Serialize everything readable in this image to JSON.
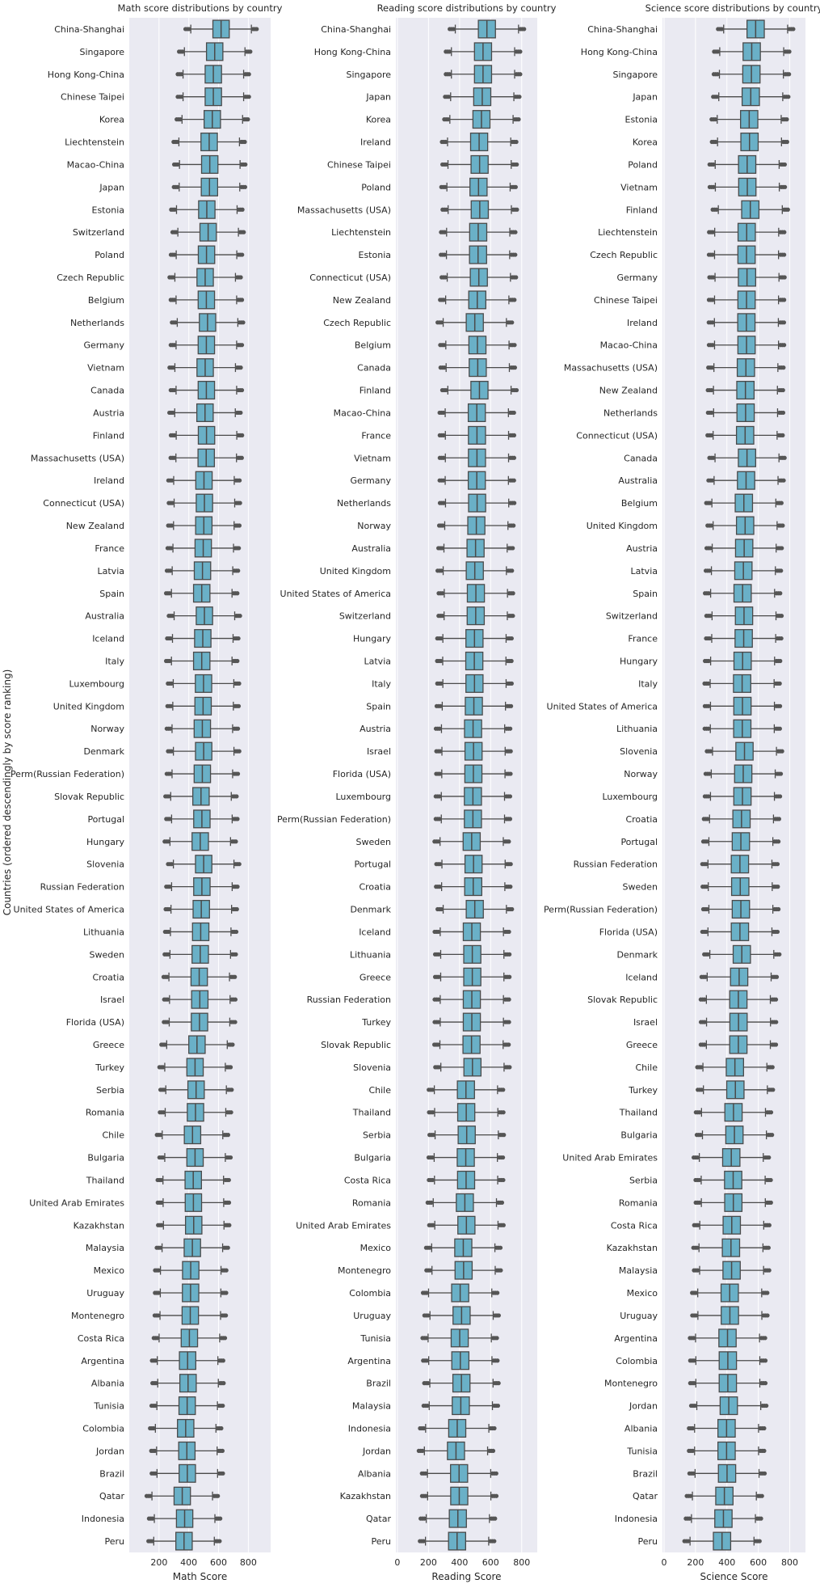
{
  "figure": {
    "ylabel": "Countries (ordered descendingly by score ranking)",
    "colors": {
      "background": "#EAEAF2",
      "grid": "#FFFFFF",
      "box_fill": "#6AB0C7",
      "box_edge": "#4A4A4A",
      "outlier": "#555555",
      "text": "#262626"
    }
  },
  "chart_data": [
    {
      "type": "box",
      "title": "Math score distributions by country",
      "xlabel": "Math Score",
      "xlim": [
        0,
        950
      ],
      "xticks": [
        200,
        400,
        600,
        800
      ],
      "categories": [
        "China-Shanghai",
        "Singapore",
        "Hong Kong-China",
        "Chinese Taipei",
        "Korea",
        "Liechtenstein",
        "Macao-China",
        "Japan",
        "Estonia",
        "Switzerland",
        "Poland",
        "Czech Republic",
        "Belgium",
        "Netherlands",
        "Germany",
        "Vietnam",
        "Canada",
        "Austria",
        "Finland",
        "Massachusetts (USA)",
        "Ireland",
        "Connecticut (USA)",
        "New Zealand",
        "France",
        "Latvia",
        "Spain",
        "Australia",
        "Iceland",
        "Italy",
        "Luxembourg",
        "United Kingdom",
        "Norway",
        "Denmark",
        "Perm(Russian Federation)",
        "Slovak Republic",
        "Portugal",
        "Hungary",
        "Slovenia",
        "Russian Federation",
        "United States of America",
        "Lithuania",
        "Sweden",
        "Croatia",
        "Israel",
        "Florida (USA)",
        "Greece",
        "Turkey",
        "Serbia",
        "Romania",
        "Chile",
        "Bulgaria",
        "Thailand",
        "United Arab Emirates",
        "Kazakhstan",
        "Malaysia",
        "Mexico",
        "Uruguay",
        "Montenegro",
        "Costa Rica",
        "Argentina",
        "Albania",
        "Tunisia",
        "Colombia",
        "Jordan",
        "Brazil",
        "Qatar",
        "Indonesia",
        "Peru"
      ],
      "medians": [
        617,
        574,
        565,
        565,
        558,
        537,
        541,
        539,
        521,
        530,
        519,
        510,
        518,
        526,
        518,
        510,
        518,
        509,
        519,
        517,
        502,
        505,
        501,
        497,
        492,
        487,
        505,
        494,
        487,
        499,
        496,
        491,
        500,
        491,
        482,
        488,
        477,
        500,
        488,
        484,
        480,
        477,
        470,
        474,
        472,
        455,
        442,
        449,
        445,
        425,
        442,
        430,
        431,
        433,
        424,
        413,
        412,
        410,
        404,
        392,
        395,
        389,
        379,
        387,
        390,
        356,
        372,
        368
      ]
    },
    {
      "type": "box",
      "title": "Reading score distributions by country",
      "xlabel": "Reading Score",
      "xlim": [
        -10,
        900
      ],
      "xticks": [
        0,
        200,
        400,
        600,
        800
      ],
      "categories": [
        "China-Shanghai",
        "Hong Kong-China",
        "Singapore",
        "Japan",
        "Korea",
        "Ireland",
        "Chinese Taipei",
        "Poland",
        "Massachusetts (USA)",
        "Liechtenstein",
        "Estonia",
        "Connecticut (USA)",
        "New Zealand",
        "Czech Republic",
        "Belgium",
        "Canada",
        "Finland",
        "Macao-China",
        "France",
        "Vietnam",
        "Germany",
        "Netherlands",
        "Norway",
        "Australia",
        "United Kingdom",
        "United States of America",
        "Switzerland",
        "Hungary",
        "Latvia",
        "Italy",
        "Spain",
        "Austria",
        "Israel",
        "Florida (USA)",
        "Luxembourg",
        "Perm(Russian Federation)",
        "Sweden",
        "Portugal",
        "Croatia",
        "Denmark",
        "Iceland",
        "Lithuania",
        "Greece",
        "Russian Federation",
        "Turkey",
        "Slovak Republic",
        "Slovenia",
        "Chile",
        "Thailand",
        "Serbia",
        "Bulgaria",
        "Costa Rica",
        "Romania",
        "United Arab Emirates",
        "Mexico",
        "Montenegro",
        "Colombia",
        "Uruguay",
        "Tunisia",
        "Argentina",
        "Brazil",
        "Malaysia",
        "Indonesia",
        "Jordan",
        "Albania",
        "Kazakhstan",
        "Qatar",
        "Peru"
      ],
      "medians": [
        576,
        551,
        551,
        546,
        541,
        526,
        529,
        522,
        530,
        520,
        519,
        524,
        514,
        498,
        515,
        517,
        528,
        511,
        512,
        512,
        511,
        513,
        508,
        503,
        498,
        505,
        504,
        496,
        495,
        496,
        492,
        487,
        490,
        489,
        486,
        486,
        478,
        490,
        488,
        498,
        479,
        482,
        482,
        479,
        479,
        477,
        483,
        441,
        443,
        446,
        440,
        442,
        434,
        444,
        424,
        426,
        404,
        413,
        401,
        405,
        412,
        408,
        385,
        377,
        397,
        398,
        389,
        384
      ]
    },
    {
      "type": "box",
      "title": "Science score distributions by country",
      "xlabel": "Science Score",
      "xlim": [
        -10,
        900
      ],
      "xticks": [
        0,
        200,
        400,
        600,
        800
      ],
      "categories": [
        "China-Shanghai",
        "Hong Kong-China",
        "Singapore",
        "Japan",
        "Estonia",
        "Korea",
        "Poland",
        "Vietnam",
        "Finland",
        "Liechtenstein",
        "Czech Republic",
        "Germany",
        "Chinese Taipei",
        "Ireland",
        "Macao-China",
        "Massachusetts (USA)",
        "New Zealand",
        "Netherlands",
        "Connecticut (USA)",
        "Canada",
        "Australia",
        "Belgium",
        "United Kingdom",
        "Austria",
        "Latvia",
        "Spain",
        "Switzerland",
        "France",
        "Hungary",
        "Italy",
        "United States of America",
        "Lithuania",
        "Slovenia",
        "Norway",
        "Luxembourg",
        "Croatia",
        "Portugal",
        "Russian Federation",
        "Sweden",
        "Perm(Russian Federation)",
        "Florida (USA)",
        "Denmark",
        "Iceland",
        "Slovak Republic",
        "Israel",
        "Greece",
        "Chile",
        "Turkey",
        "Thailand",
        "Bulgaria",
        "United Arab Emirates",
        "Serbia",
        "Romania",
        "Costa Rica",
        "Kazakhstan",
        "Malaysia",
        "Mexico",
        "Uruguay",
        "Argentina",
        "Colombia",
        "Montenegro",
        "Jordan",
        "Albania",
        "Tunisia",
        "Brazil",
        "Qatar",
        "Indonesia",
        "Peru"
      ],
      "medians": [
        583,
        558,
        556,
        552,
        542,
        544,
        529,
        530,
        549,
        526,
        525,
        528,
        525,
        524,
        525,
        521,
        518,
        519,
        516,
        528,
        522,
        508,
        516,
        510,
        505,
        500,
        509,
        507,
        500,
        497,
        499,
        498,
        512,
        504,
        499,
        493,
        489,
        483,
        485,
        489,
        483,
        495,
        478,
        473,
        474,
        473,
        451,
        454,
        442,
        448,
        428,
        440,
        441,
        431,
        426,
        430,
        418,
        419,
        404,
        406,
        406,
        412,
        398,
        398,
        401,
        384,
        378,
        369
      ]
    }
  ]
}
